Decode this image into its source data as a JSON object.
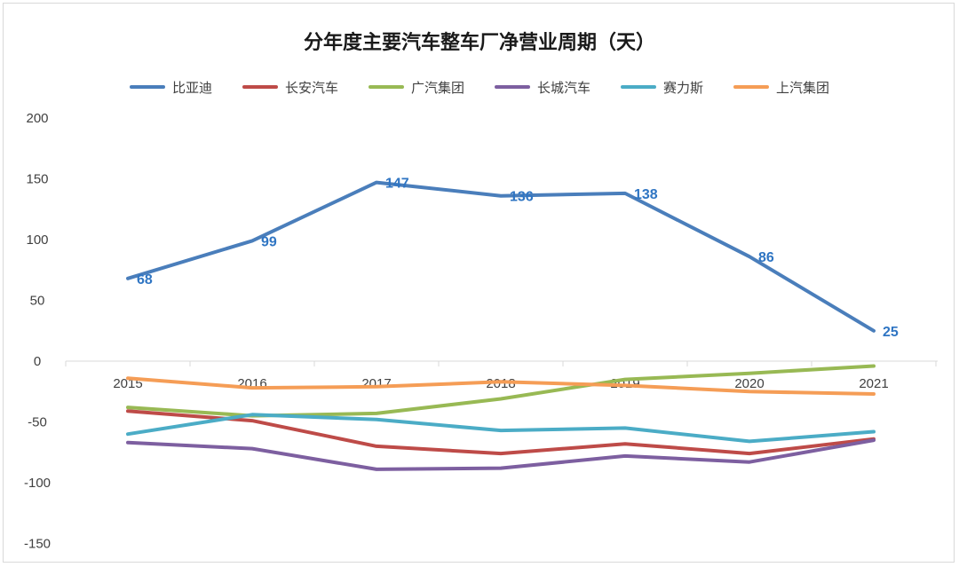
{
  "chart_data": {
    "type": "line",
    "title": "分年度主要汽车整车厂净营业周期（天）",
    "xlabel": "",
    "ylabel": "",
    "categories": [
      "2015",
      "2016",
      "2017",
      "2018",
      "2019",
      "2020",
      "2021"
    ],
    "ylim": [
      -150,
      200
    ],
    "yticks": [
      200,
      150,
      100,
      50,
      0,
      -50,
      -100,
      -150
    ],
    "grid": false,
    "legend_position": "top",
    "series": [
      {
        "name": "比亚迪",
        "color": "#4a7ebb",
        "values": [
          68,
          99,
          147,
          136,
          138,
          86,
          25
        ],
        "labels": [
          "68",
          "99",
          "147",
          "136",
          "138",
          "86",
          "25"
        ]
      },
      {
        "name": "长安汽车",
        "color": "#be4b48",
        "values": [
          -41,
          -49,
          -70,
          -76,
          -68,
          -76,
          -64
        ]
      },
      {
        "name": "广汽集团",
        "color": "#98b954",
        "values": [
          -38,
          -45,
          -43,
          -31,
          -15,
          -10,
          -4
        ]
      },
      {
        "name": "长城汽车",
        "color": "#7d5fa0",
        "values": [
          -67,
          -72,
          -89,
          -88,
          -78,
          -83,
          -65
        ]
      },
      {
        "name": "赛力斯",
        "color": "#4bacc6",
        "values": [
          -60,
          -44,
          -48,
          -57,
          -55,
          -66,
          -58
        ]
      },
      {
        "name": "上汽集团",
        "color": "#f59d56",
        "values": [
          -14,
          -22,
          -21,
          -17,
          -20,
          -25,
          -27
        ]
      }
    ]
  }
}
